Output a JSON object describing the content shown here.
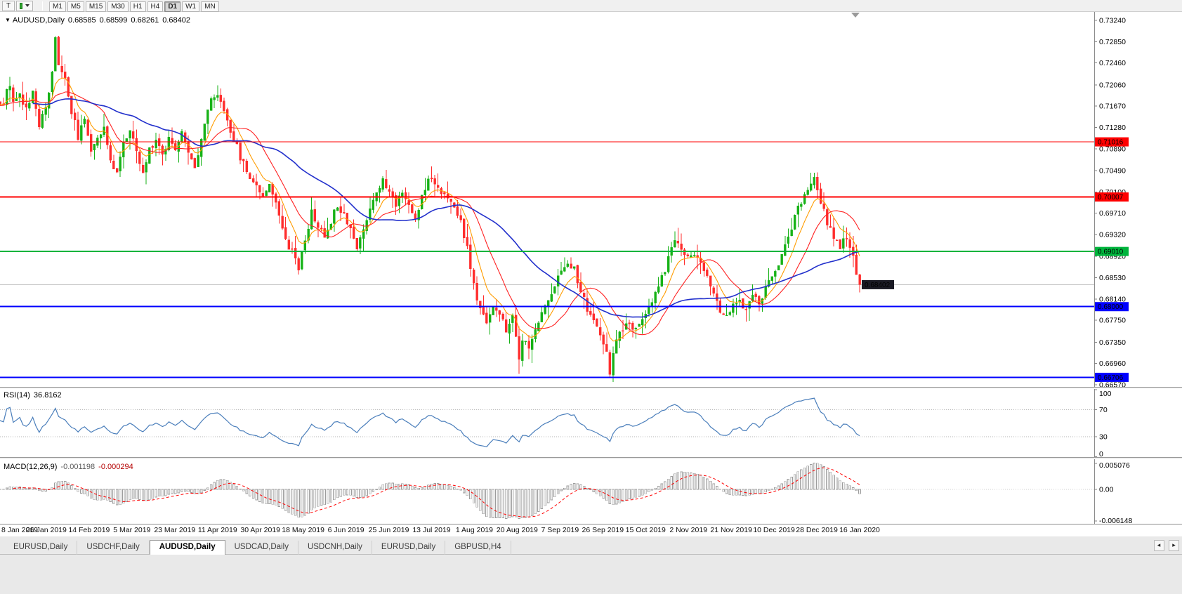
{
  "toolbar": {
    "tool_button_label": "T",
    "timeframes": [
      "M1",
      "M5",
      "M15",
      "M30",
      "H1",
      "H4",
      "D1",
      "W1",
      "MN"
    ],
    "active_timeframe": "D1"
  },
  "icons": {
    "symbol_dropdown": "▼",
    "tab_scroll_left": "◂",
    "tab_scroll_right": "▸"
  },
  "chart_header": {
    "symbol_period": "AUDUSD,Daily",
    "open": "0.68585",
    "high": "0.68599",
    "low": "0.68261",
    "close": "0.68402"
  },
  "price_axis": {
    "ticks": [
      "0.73240",
      "0.72850",
      "0.72460",
      "0.72060",
      "0.71670",
      "0.71280",
      "0.70890",
      "0.70490",
      "0.70100",
      "0.69710",
      "0.69320",
      "0.68920",
      "0.68530",
      "0.68140",
      "0.67750",
      "0.67350",
      "0.66960",
      "0.66570"
    ]
  },
  "hlines": [
    {
      "price": 0.71016,
      "label": "0.71016",
      "color": "#ff0000",
      "width": 1
    },
    {
      "price": 0.70007,
      "label": "0.70007",
      "color": "#ff0000",
      "width": 2
    },
    {
      "price": 0.6901,
      "label": "0.69010",
      "color": "#00b43c",
      "width": 2
    },
    {
      "price": 0.68,
      "label": "0.68000",
      "color": "#0000ff",
      "width": 2
    },
    {
      "price": 0.66706,
      "label": "0.66706",
      "color": "#0000ff",
      "width": 2
    }
  ],
  "current_price": {
    "value": 0.68402,
    "label": "0.68402",
    "badge_color": "#1a1a24",
    "line_color": "#c4c4c4"
  },
  "date_axis": [
    "8 Jan 2019",
    "26 Jan 2019",
    "14 Feb 2019",
    "5 Mar 2019",
    "23 Mar 2019",
    "11 Apr 2019",
    "30 Apr 2019",
    "18 May 2019",
    "6 Jun 2019",
    "25 Jun 2019",
    "13 Jul 2019",
    "1 Aug 2019",
    "20 Aug 2019",
    "7 Sep 2019",
    "26 Sep 2019",
    "15 Oct 2019",
    "2 Nov 2019",
    "21 Nov 2019",
    "10 Dec 2019",
    "28 Dec 2019",
    "16 Jan 2020"
  ],
  "rsi": {
    "label": "RSI(14)",
    "value": "36.8162",
    "levels": [
      "100",
      "70",
      "30",
      "0"
    ],
    "line_color": "#4a7ebb"
  },
  "macd": {
    "label": "MACD(12,26,9)",
    "value1": "-0.001198",
    "value2": "-0.000294",
    "axis": [
      "0.005076",
      "0.00",
      "-0.006148"
    ],
    "hist_fill": "#f0f0f0",
    "hist_stroke": "#9c9c9c",
    "signal_color": "#ff0000"
  },
  "tabs": {
    "items": [
      "EURUSD,Daily",
      "USDCHF,Daily",
      "AUDUSD,Daily",
      "USDCAD,Daily",
      "USDCNH,Daily",
      "EURUSD,Daily",
      "GBPUSD,H4"
    ],
    "active_index": 2
  },
  "chart_data": {
    "type": "candlestick",
    "symbol": "AUDUSD",
    "timeframe": "Daily",
    "title": "AUDUSD,Daily",
    "candles_count": 265,
    "price_axis_range": [
      0.6657,
      0.7324
    ],
    "current_ohlc": {
      "open": 0.68585,
      "high": 0.68599,
      "low": 0.68261,
      "close": 0.68402
    },
    "up_color": "#17b217",
    "down_color": "#ff2d2d",
    "ma": [
      {
        "period": 8,
        "type": "ema",
        "color": "#ff9c00",
        "width": 1.1
      },
      {
        "period": 16,
        "type": "sma",
        "color": "#ff2222",
        "width": 1.1
      },
      {
        "period": 40,
        "type": "sma",
        "color": "#2230cc",
        "width": 1.6
      }
    ],
    "seed": 11,
    "price_path_anchors": [
      [
        0,
        0.7168
      ],
      [
        1,
        0.7195
      ],
      [
        2,
        0.7205
      ],
      [
        3,
        0.7172
      ],
      [
        5,
        0.719
      ],
      [
        7,
        0.7162
      ],
      [
        9,
        0.7196
      ],
      [
        11,
        0.713
      ],
      [
        13,
        0.7162
      ],
      [
        15,
        0.7235
      ],
      [
        16,
        0.7288
      ],
      [
        17,
        0.7248
      ],
      [
        19,
        0.7215
      ],
      [
        21,
        0.7158
      ],
      [
        23,
        0.7112
      ],
      [
        25,
        0.7138
      ],
      [
        27,
        0.709
      ],
      [
        29,
        0.7112
      ],
      [
        31,
        0.7128
      ],
      [
        33,
        0.7062
      ],
      [
        35,
        0.7052
      ],
      [
        37,
        0.7098
      ],
      [
        39,
        0.7122
      ],
      [
        41,
        0.7082
      ],
      [
        43,
        0.7042
      ],
      [
        45,
        0.7088
      ],
      [
        47,
        0.7108
      ],
      [
        49,
        0.7078
      ],
      [
        51,
        0.711
      ],
      [
        53,
        0.7092
      ],
      [
        55,
        0.7122
      ],
      [
        57,
        0.7078
      ],
      [
        59,
        0.7058
      ],
      [
        61,
        0.7108
      ],
      [
        63,
        0.7162
      ],
      [
        65,
        0.7188
      ],
      [
        67,
        0.7178
      ],
      [
        69,
        0.7142
      ],
      [
        71,
        0.7108
      ],
      [
        73,
        0.7075
      ],
      [
        75,
        0.7048
      ],
      [
        78,
        0.7022
      ],
      [
        80,
        0.7005
      ],
      [
        82,
        0.7028
      ],
      [
        84,
        0.6988
      ],
      [
        86,
        0.6948
      ],
      [
        88,
        0.6912
      ],
      [
        90,
        0.6893
      ],
      [
        91,
        0.6872
      ],
      [
        93,
        0.6922
      ],
      [
        95,
        0.6972
      ],
      [
        97,
        0.6948
      ],
      [
        99,
        0.6928
      ],
      [
        101,
        0.6958
      ],
      [
        103,
        0.6988
      ],
      [
        105,
        0.697
      ],
      [
        107,
        0.6945
      ],
      [
        109,
        0.6905
      ],
      [
        111,
        0.6942
      ],
      [
        113,
        0.6982
      ],
      [
        115,
        0.7012
      ],
      [
        117,
        0.703
      ],
      [
        119,
        0.701
      ],
      [
        121,
        0.6988
      ],
      [
        123,
        0.7015
      ],
      [
        125,
        0.6982
      ],
      [
        127,
        0.696
      ],
      [
        129,
        0.7002
      ],
      [
        131,
        0.7038
      ],
      [
        133,
        0.703
      ],
      [
        135,
        0.701
      ],
      [
        137,
        0.6995
      ],
      [
        139,
        0.698
      ],
      [
        141,
        0.6958
      ],
      [
        143,
        0.6905
      ],
      [
        145,
        0.6838
      ],
      [
        147,
        0.6792
      ],
      [
        149,
        0.6775
      ],
      [
        151,
        0.6802
      ],
      [
        153,
        0.6782
      ],
      [
        155,
        0.6758
      ],
      [
        157,
        0.6778
      ],
      [
        158,
        0.6745
      ],
      [
        159,
        0.67
      ],
      [
        160,
        0.6742
      ],
      [
        162,
        0.6718
      ],
      [
        164,
        0.6762
      ],
      [
        166,
        0.6788
      ],
      [
        168,
        0.6812
      ],
      [
        170,
        0.6842
      ],
      [
        172,
        0.6862
      ],
      [
        174,
        0.6885
      ],
      [
        176,
        0.6868
      ],
      [
        178,
        0.6828
      ],
      [
        180,
        0.6795
      ],
      [
        182,
        0.6775
      ],
      [
        184,
        0.6745
      ],
      [
        186,
        0.6712
      ],
      [
        187,
        0.6682
      ],
      [
        188,
        0.6718
      ],
      [
        190,
        0.6748
      ],
      [
        192,
        0.6768
      ],
      [
        194,
        0.6755
      ],
      [
        196,
        0.6772
      ],
      [
        198,
        0.6782
      ],
      [
        200,
        0.6808
      ],
      [
        202,
        0.6838
      ],
      [
        204,
        0.6868
      ],
      [
        206,
        0.6908
      ],
      [
        207,
        0.6925
      ],
      [
        209,
        0.6908
      ],
      [
        211,
        0.6888
      ],
      [
        213,
        0.69
      ],
      [
        215,
        0.6876
      ],
      [
        217,
        0.6856
      ],
      [
        219,
        0.6818
      ],
      [
        221,
        0.6795
      ],
      [
        223,
        0.6786
      ],
      [
        225,
        0.68
      ],
      [
        227,
        0.6816
      ],
      [
        229,
        0.679
      ],
      [
        231,
        0.6826
      ],
      [
        233,
        0.68
      ],
      [
        235,
        0.6832
      ],
      [
        237,
        0.6856
      ],
      [
        239,
        0.6882
      ],
      [
        241,
        0.6912
      ],
      [
        243,
        0.6945
      ],
      [
        245,
        0.6978
      ],
      [
        247,
        0.7006
      ],
      [
        249,
        0.7026
      ],
      [
        250,
        0.703
      ],
      [
        252,
        0.6992
      ],
      [
        254,
        0.6955
      ],
      [
        256,
        0.6928
      ],
      [
        258,
        0.691
      ],
      [
        260,
        0.6926
      ],
      [
        262,
        0.689
      ],
      [
        263,
        0.6856
      ],
      [
        264,
        0.684
      ]
    ],
    "overrides": [
      {
        "i": 16,
        "h": 0.7295
      },
      {
        "i": 132,
        "h": 0.7057
      },
      {
        "i": 159,
        "l": 0.6677
      },
      {
        "i": 163,
        "l": 0.6697
      },
      {
        "i": 187,
        "l": 0.667
      },
      {
        "i": 207,
        "h": 0.6938
      },
      {
        "i": 250,
        "h": 0.7045
      },
      {
        "i": 263,
        "c": 0.68585
      },
      {
        "i": 264,
        "o": 0.68585,
        "h": 0.68599,
        "l": 0.68261,
        "c": 0.68402
      }
    ]
  }
}
